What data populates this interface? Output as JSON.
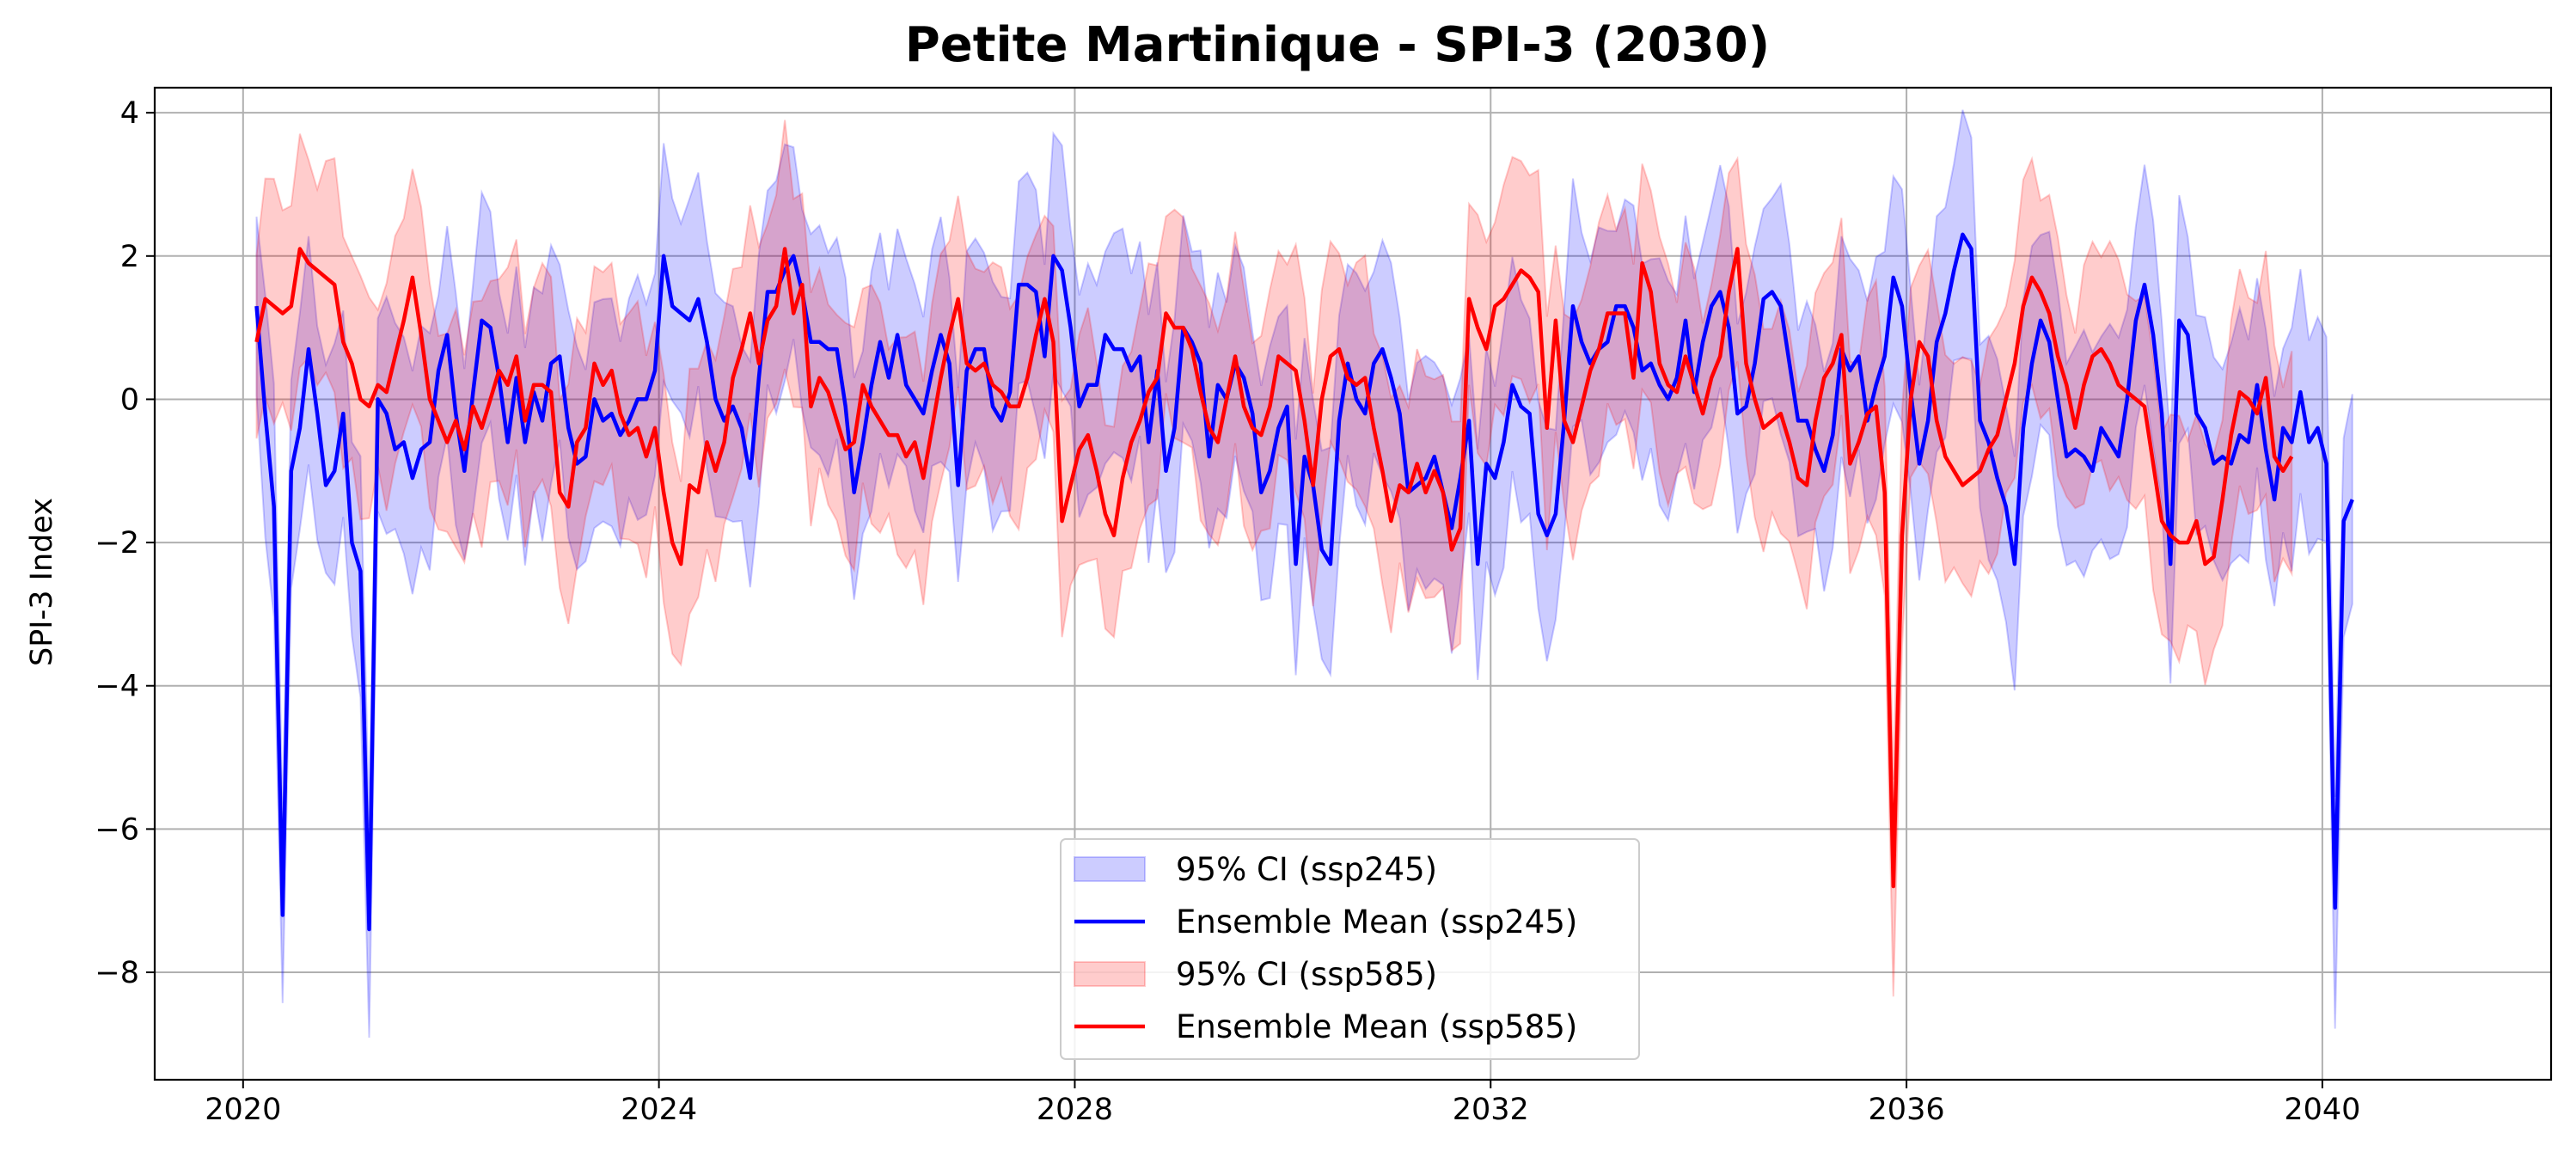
{
  "chart_data": {
    "type": "line",
    "title": "Petite Martinique - SPI-3 (2030)",
    "xlabel": "",
    "ylabel": "SPI-3 Index",
    "xlim": [
      2019.15,
      2042.2
    ],
    "ylim": [
      -9.5,
      4.35
    ],
    "xticks": [
      2020,
      2024,
      2028,
      2032,
      2036,
      2040
    ],
    "yticks": [
      -8,
      -6,
      -4,
      -2,
      0,
      2,
      4
    ],
    "grid": true,
    "legend_position": "lower center",
    "x_start": 2020.13,
    "x_step": 0.0833,
    "series": [
      {
        "name": "Ensemble Mean (ssp245)",
        "color": "#0000ff",
        "ci_name": "95% CI (ssp245)",
        "ci_color": "#0000ff",
        "values": [
          1.3,
          -0.2,
          -1.5,
          -7.2,
          -1.0,
          -0.4,
          0.7,
          -0.2,
          -1.2,
          -1.0,
          -0.2,
          -2.0,
          -2.4,
          -7.4,
          0.0,
          -0.2,
          -0.7,
          -0.6,
          -1.1,
          -0.7,
          -0.6,
          0.4,
          0.9,
          -0.2,
          -1.0,
          0.1,
          1.1,
          1.0,
          0.3,
          -0.6,
          0.3,
          -0.6,
          0.1,
          -0.3,
          0.5,
          0.6,
          -0.4,
          -0.9,
          -0.8,
          0.0,
          -0.3,
          -0.2,
          -0.5,
          -0.3,
          0.0,
          0.0,
          0.4,
          2.0,
          1.3,
          1.2,
          1.1,
          1.4,
          0.8,
          0.0,
          -0.3,
          -0.1,
          -0.4,
          -1.1,
          0.3,
          1.5,
          1.5,
          1.8,
          2.0,
          1.5,
          0.8,
          0.8,
          0.7,
          0.7,
          -0.1,
          -1.3,
          -0.6,
          0.2,
          0.8,
          0.3,
          0.9,
          0.2,
          0.0,
          -0.2,
          0.4,
          0.9,
          0.5,
          -1.2,
          0.4,
          0.7,
          0.7,
          -0.1,
          -0.3,
          0.1,
          1.6,
          1.6,
          1.5,
          0.6,
          2.0,
          1.8,
          1.0,
          -0.1,
          0.2,
          0.2,
          0.9,
          0.7,
          0.7,
          0.4,
          0.6,
          -0.6,
          0.4,
          -1.0,
          -0.4,
          1.0,
          0.8,
          0.5,
          -0.8,
          0.2,
          0.0,
          0.5,
          0.3,
          -0.2,
          -1.3,
          -1.0,
          -0.4,
          -0.1,
          -2.3,
          -0.8,
          -1.2,
          -2.1,
          -2.3,
          -0.3,
          0.5,
          0.0,
          -0.2,
          0.5,
          0.7,
          0.3,
          -0.2,
          -1.3,
          -1.2,
          -1.1,
          -0.8,
          -1.3,
          -1.8,
          -1.1,
          -0.3,
          -2.3,
          -0.9,
          -1.1,
          -0.6,
          0.2,
          -0.1,
          -0.2,
          -1.6,
          -1.9,
          -1.6,
          -0.3,
          1.3,
          0.8,
          0.5,
          0.7,
          0.8,
          1.3,
          1.3,
          1.0,
          0.4,
          0.5,
          0.2,
          0.0,
          0.3,
          1.1,
          0.1,
          0.8,
          1.3,
          1.5,
          1.0,
          -0.2,
          -0.1,
          0.5,
          1.4,
          1.5,
          1.3,
          0.5,
          -0.3,
          -0.3,
          -0.7,
          -1.0,
          -0.5,
          0.7,
          0.4,
          0.6,
          -0.3,
          0.2,
          0.6,
          1.7,
          1.3,
          0.1,
          -0.9,
          -0.3,
          0.8,
          1.2,
          1.8,
          2.3,
          2.1,
          -0.3,
          -0.6,
          -1.1,
          -1.5,
          -2.3,
          -0.4,
          0.5,
          1.1,
          0.8,
          0.0,
          -0.8,
          -0.7,
          -0.8,
          -1.0,
          -0.4,
          -0.6,
          -0.8,
          0.0,
          1.1,
          1.6,
          0.9,
          -0.2,
          -2.3,
          1.1,
          0.9,
          -0.2,
          -0.4,
          -0.9,
          -0.8,
          -0.9,
          -0.5,
          -0.6,
          0.2,
          -0.7,
          -1.4,
          -0.4,
          -0.6,
          0.1,
          -0.6,
          -0.4,
          -0.9,
          -7.1,
          -1.7,
          -1.4
        ]
      },
      {
        "name": "Ensemble Mean (ssp585)",
        "color": "#ff0000",
        "ci_name": "95% CI (ssp585)",
        "ci_color": "#ff0000",
        "values": [
          0.8,
          1.4,
          1.3,
          1.2,
          1.3,
          2.1,
          1.9,
          1.8,
          1.7,
          1.6,
          0.8,
          0.5,
          0.0,
          -0.1,
          0.2,
          0.1,
          0.6,
          1.1,
          1.7,
          0.9,
          0.0,
          -0.3,
          -0.6,
          -0.3,
          -0.7,
          -0.1,
          -0.4,
          0.0,
          0.4,
          0.2,
          0.6,
          -0.3,
          0.2,
          0.2,
          0.1,
          -1.3,
          -1.5,
          -0.6,
          -0.4,
          0.5,
          0.2,
          0.4,
          -0.2,
          -0.5,
          -0.4,
          -0.8,
          -0.4,
          -1.3,
          -2.0,
          -2.3,
          -1.2,
          -1.3,
          -0.6,
          -1.0,
          -0.6,
          0.3,
          0.7,
          1.2,
          0.5,
          1.1,
          1.3,
          2.1,
          1.2,
          1.6,
          -0.1,
          0.3,
          0.1,
          -0.3,
          -0.7,
          -0.6,
          0.2,
          -0.1,
          -0.3,
          -0.5,
          -0.5,
          -0.8,
          -0.6,
          -1.1,
          -0.4,
          0.3,
          0.9,
          1.4,
          0.5,
          0.4,
          0.5,
          0.2,
          0.1,
          -0.1,
          -0.1,
          0.3,
          0.9,
          1.4,
          0.8,
          -1.7,
          -1.2,
          -0.7,
          -0.5,
          -1.0,
          -1.6,
          -1.9,
          -1.1,
          -0.6,
          -0.3,
          0.1,
          0.3,
          1.2,
          1.0,
          1.0,
          0.7,
          0.1,
          -0.4,
          -0.6,
          0.0,
          0.6,
          -0.1,
          -0.4,
          -0.5,
          -0.1,
          0.6,
          0.5,
          0.4,
          -0.3,
          -1.2,
          0.0,
          0.6,
          0.7,
          0.3,
          0.2,
          0.3,
          -0.4,
          -1.0,
          -1.7,
          -1.2,
          -1.3,
          -0.9,
          -1.3,
          -1.0,
          -1.3,
          -2.1,
          -1.8,
          1.4,
          1.0,
          0.7,
          1.3,
          1.4,
          1.6,
          1.8,
          1.7,
          1.5,
          -0.4,
          1.1,
          -0.3,
          -0.6,
          -0.1,
          0.4,
          0.7,
          1.2,
          1.2,
          1.2,
          0.3,
          1.9,
          1.5,
          0.5,
          0.2,
          0.1,
          0.6,
          0.2,
          -0.2,
          0.3,
          0.6,
          1.5,
          2.1,
          0.5,
          0.0,
          -0.4,
          -0.3,
          -0.2,
          -0.6,
          -1.1,
          -1.2,
          -0.3,
          0.3,
          0.5,
          0.9,
          -0.9,
          -0.6,
          -0.2,
          -0.1,
          -1.3,
          -6.8,
          -1.9,
          0.0,
          0.8,
          0.6,
          -0.3,
          -0.8,
          -1.0,
          -1.2,
          -1.1,
          -1.0,
          -0.7,
          -0.5,
          0.0,
          0.5,
          1.3,
          1.7,
          1.5,
          1.2,
          0.6,
          0.2,
          -0.4,
          0.2,
          0.6,
          0.7,
          0.5,
          0.2,
          0.1,
          0.0,
          -0.1,
          -0.9,
          -1.7,
          -1.9,
          -2.0,
          -2.0,
          -1.7,
          -2.3,
          -2.2,
          -1.4,
          -0.5,
          0.1,
          0.0,
          -0.2,
          0.3,
          -0.8,
          -1.0,
          -0.8
        ]
      }
    ],
    "legend": [
      {
        "label": "95% CI (ssp245)",
        "kind": "patch",
        "color": "#0000ff"
      },
      {
        "label": "Ensemble Mean (ssp245)",
        "kind": "line",
        "color": "#0000ff"
      },
      {
        "label": "95% CI (ssp585)",
        "kind": "patch",
        "color": "#ff0000"
      },
      {
        "label": "Ensemble Mean (ssp585)",
        "kind": "line",
        "color": "#ff0000"
      }
    ]
  }
}
